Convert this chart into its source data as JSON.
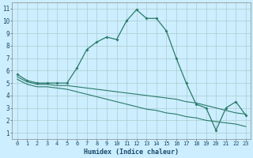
{
  "xlabel": "Humidex (Indice chaleur)",
  "bg_color": "#cceeff",
  "grid_color": "#aacccc",
  "line_color": "#2a7a6a",
  "xlim": [
    -0.5,
    23.5
  ],
  "ylim": [
    0.5,
    11.5
  ],
  "xticks": [
    0,
    1,
    2,
    3,
    4,
    5,
    6,
    7,
    8,
    9,
    10,
    11,
    12,
    13,
    14,
    15,
    16,
    17,
    18,
    19,
    20,
    21,
    22,
    23
  ],
  "yticks": [
    1,
    2,
    3,
    4,
    5,
    6,
    7,
    8,
    9,
    10,
    11
  ],
  "line1_x": [
    0,
    1,
    2,
    3,
    4,
    5,
    6,
    7,
    8,
    9,
    10,
    11,
    12,
    13,
    14,
    15,
    16,
    17,
    18,
    19,
    20,
    21,
    22,
    23
  ],
  "line1_y": [
    5.7,
    5.2,
    5.0,
    5.0,
    5.0,
    5.0,
    6.2,
    7.7,
    8.3,
    8.7,
    8.5,
    10.0,
    10.9,
    10.2,
    10.2,
    9.2,
    7.0,
    5.0,
    3.3,
    3.0,
    1.2,
    3.0,
    3.5,
    2.4
  ],
  "line2_x": [
    0,
    1,
    2,
    3,
    4,
    5,
    6,
    7,
    8,
    9,
    10,
    11,
    12,
    13,
    14,
    15,
    16,
    17,
    18,
    19,
    20,
    21,
    22,
    23
  ],
  "line2_y": [
    5.5,
    5.1,
    4.9,
    4.9,
    4.8,
    4.8,
    4.7,
    4.6,
    4.5,
    4.4,
    4.3,
    4.2,
    4.1,
    4.0,
    3.9,
    3.8,
    3.7,
    3.5,
    3.4,
    3.2,
    3.0,
    2.8,
    2.6,
    2.5
  ],
  "line3_x": [
    0,
    1,
    2,
    3,
    4,
    5,
    6,
    7,
    8,
    9,
    10,
    11,
    12,
    13,
    14,
    15,
    16,
    17,
    18,
    19,
    20,
    21,
    22,
    23
  ],
  "line3_y": [
    5.3,
    4.9,
    4.7,
    4.7,
    4.6,
    4.5,
    4.3,
    4.1,
    3.9,
    3.7,
    3.5,
    3.3,
    3.1,
    2.9,
    2.8,
    2.6,
    2.5,
    2.3,
    2.2,
    2.0,
    1.9,
    1.8,
    1.7,
    1.5
  ]
}
